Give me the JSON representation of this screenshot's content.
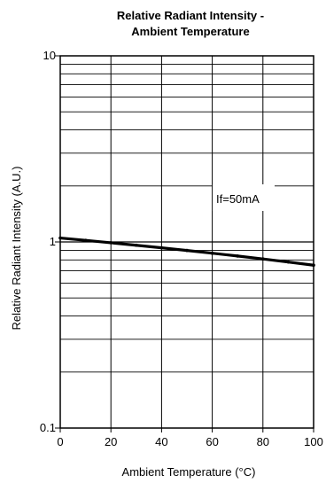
{
  "chart_data": {
    "type": "line",
    "title_lines": [
      "Relative Radiant Intensity -",
      "Ambient Temperature"
    ],
    "xlabel": "Ambient Temperature (°C)",
    "ylabel": "Relative Radiant Intensity (A.U.)",
    "xlim": [
      0,
      100
    ],
    "ylim": [
      0.1,
      10
    ],
    "y_scale": "log",
    "x_ticks": [
      0,
      20,
      40,
      60,
      80,
      100
    ],
    "x_tick_labels": [
      "0",
      "20",
      "40",
      "60",
      "80",
      "100"
    ],
    "y_tick_values": [
      0.1,
      1,
      10
    ],
    "y_tick_labels": [
      "0.1",
      "1",
      "10"
    ],
    "grid": true,
    "annotation": "If=50mA",
    "series": [
      {
        "x": [
          0,
          10,
          20,
          30,
          40,
          50,
          60,
          70,
          80,
          90,
          100
        ],
        "y": [
          1.05,
          1.02,
          0.99,
          0.96,
          0.93,
          0.9,
          0.87,
          0.84,
          0.81,
          0.78,
          0.75
        ],
        "color": "#000000"
      }
    ]
  }
}
